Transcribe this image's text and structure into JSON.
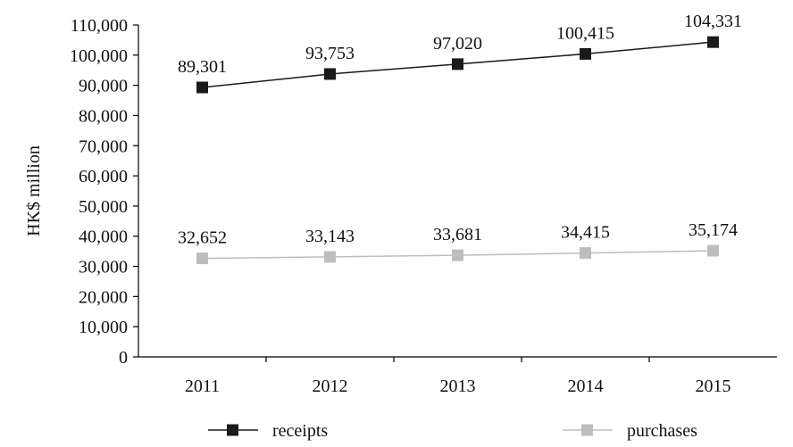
{
  "chart_data": {
    "type": "line",
    "title": "",
    "xlabel": "",
    "ylabel": "HK$ million",
    "categories": [
      "2011",
      "2012",
      "2013",
      "2014",
      "2015"
    ],
    "ylim": [
      0,
      110000
    ],
    "yticks": [
      0,
      10000,
      20000,
      30000,
      40000,
      50000,
      60000,
      70000,
      80000,
      90000,
      100000,
      110000
    ],
    "ytick_labels": [
      "0",
      "10,000",
      "20,000",
      "30,000",
      "40,000",
      "50,000",
      "60,000",
      "70,000",
      "80,000",
      "90,000",
      "100,000",
      "110,000"
    ],
    "grid": false,
    "legend_position": "bottom",
    "series": [
      {
        "name": "receipts",
        "values": [
          89301,
          93753,
          97020,
          100415,
          104331
        ],
        "labels": [
          "89,301",
          "93,753",
          "97,020",
          "100,415",
          "104,331"
        ],
        "color": "#1a1a1a",
        "marker": "square"
      },
      {
        "name": "purchases",
        "values": [
          32652,
          33143,
          33681,
          34415,
          35174
        ],
        "labels": [
          "32,652",
          "33,143",
          "33,681",
          "34,415",
          "35,174"
        ],
        "color": "#bdbdbd",
        "marker": "square"
      }
    ]
  }
}
